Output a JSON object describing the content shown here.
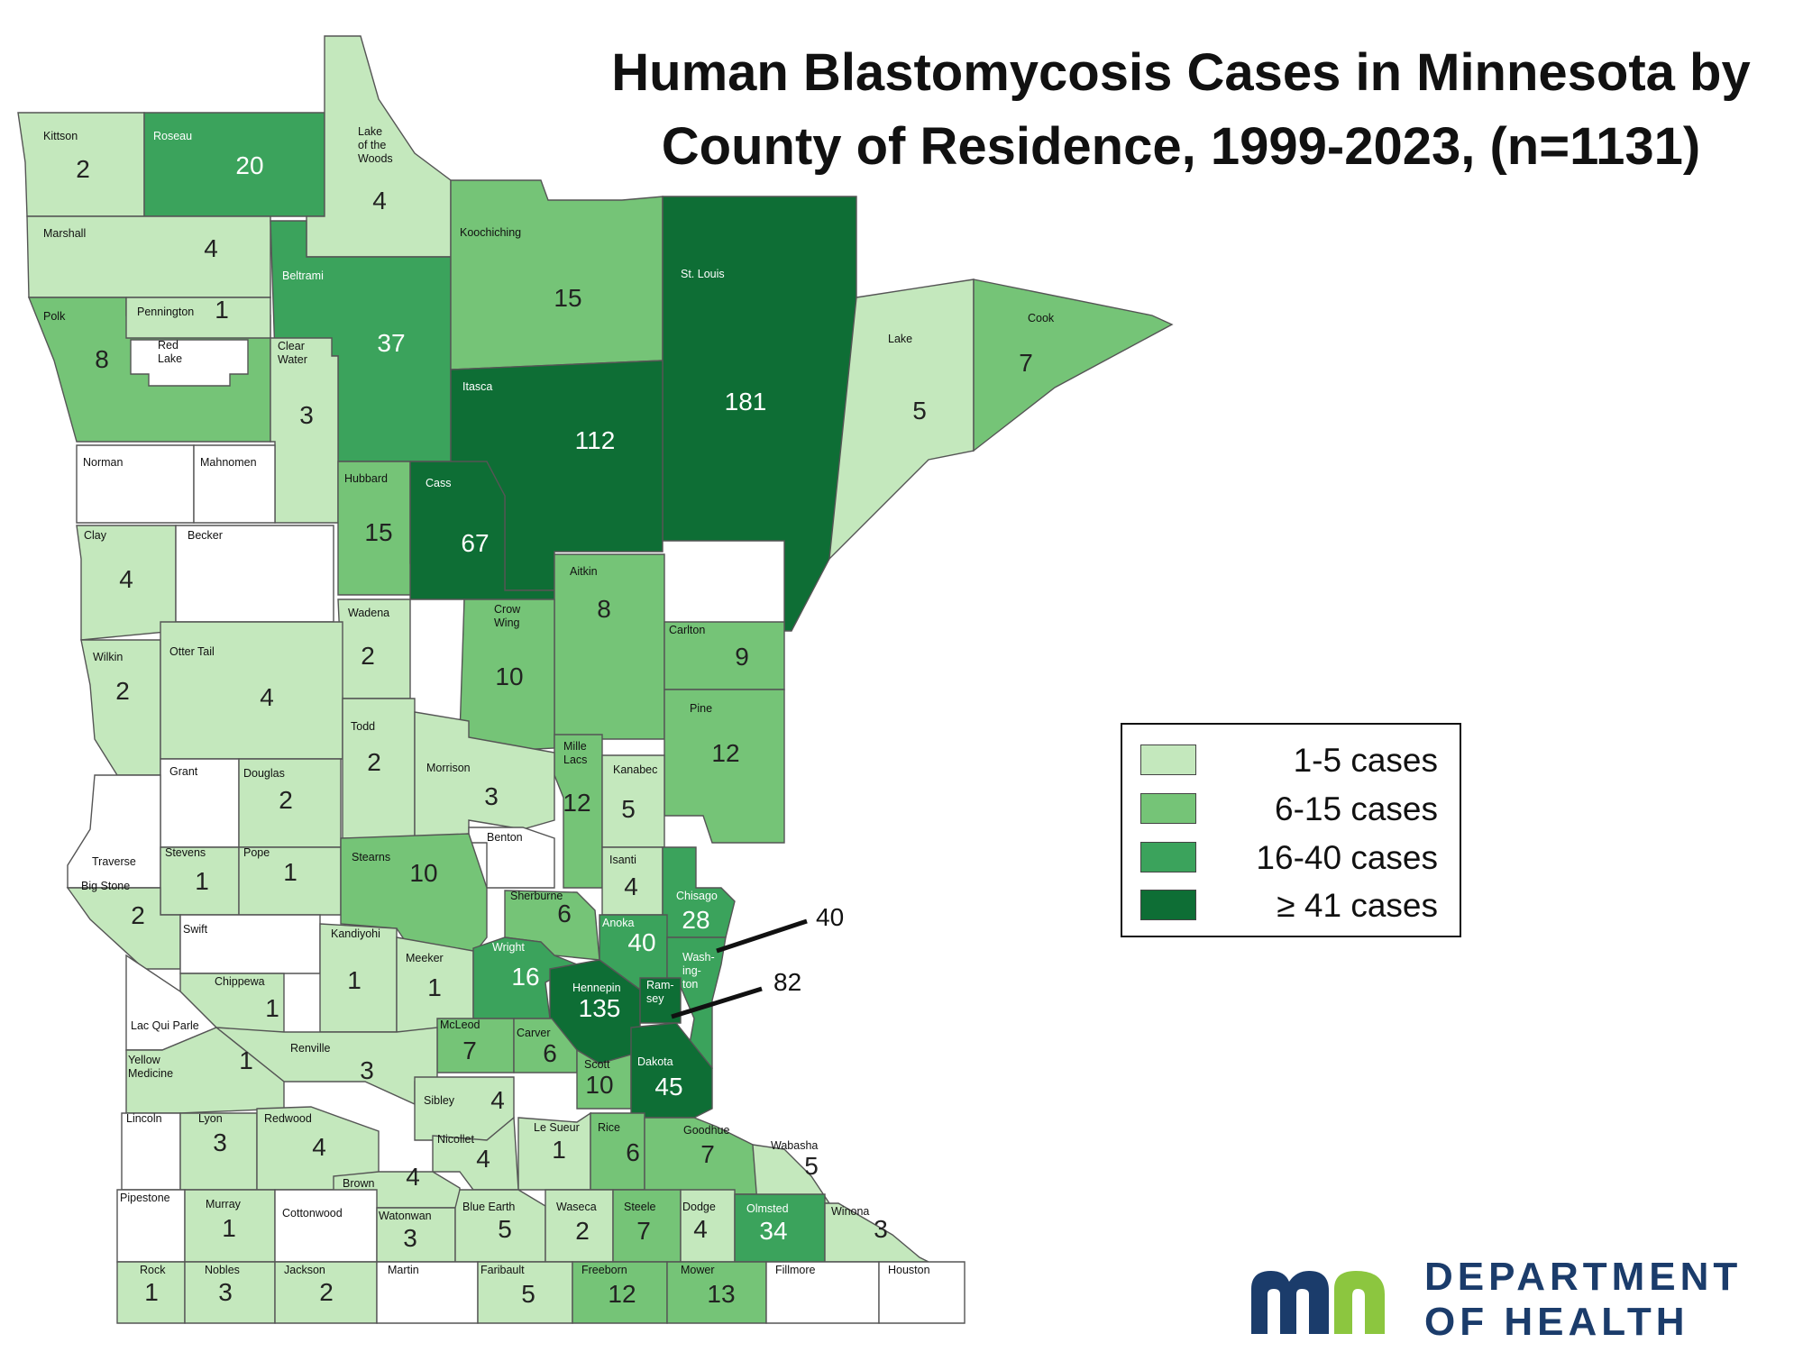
{
  "title": "Human Blastomycosis Cases in Minnesota by County of Residence, 1999-2023, (n=1131)",
  "colors": {
    "none": "#ffffff",
    "c1_5": "#c4e8bd",
    "c6_15": "#75c477",
    "c16_40": "#3ba35c",
    "c41plus": "#0e6e35",
    "border": "#555555",
    "logo_blue": "#1b3c6b",
    "logo_green": "#8cc63f"
  },
  "legend": {
    "items": [
      {
        "label": "1-5 cases",
        "color": "#c4e8bd"
      },
      {
        "label": "6-15 cases",
        "color": "#75c477"
      },
      {
        "label": "16-40 cases",
        "color": "#3ba35c"
      },
      {
        "label": "≥ 41 cases",
        "color": "#0e6e35"
      }
    ]
  },
  "callouts": {
    "washington_value": "40",
    "ramsey_value": "82"
  },
  "logo": {
    "line1": "DEPARTMENT",
    "line2": "OF HEALTH"
  },
  "counties": [
    {
      "name": "Kittson",
      "value": "2",
      "bin": "c1_5"
    },
    {
      "name": "Roseau",
      "value": "20",
      "bin": "c16_40"
    },
    {
      "name": "Lake of the Woods",
      "value": "4",
      "bin": "c1_5"
    },
    {
      "name": "Marshall",
      "value": "4",
      "bin": "c1_5"
    },
    {
      "name": "Beltrami",
      "value": "37",
      "bin": "c16_40"
    },
    {
      "name": "Koochiching",
      "value": "15",
      "bin": "c6_15"
    },
    {
      "name": "St. Louis",
      "value": "181",
      "bin": "c41plus"
    },
    {
      "name": "Lake",
      "value": "5",
      "bin": "c1_5"
    },
    {
      "name": "Cook",
      "value": "7",
      "bin": "c6_15"
    },
    {
      "name": "Polk",
      "value": "8",
      "bin": "c6_15"
    },
    {
      "name": "Pennington",
      "value": "1",
      "bin": "c1_5"
    },
    {
      "name": "Red Lake",
      "value": "",
      "bin": "none"
    },
    {
      "name": "Clear Water",
      "value": "3",
      "bin": "c1_5"
    },
    {
      "name": "Itasca",
      "value": "112",
      "bin": "c41plus"
    },
    {
      "name": "Norman",
      "value": "",
      "bin": "none"
    },
    {
      "name": "Mahnomen",
      "value": "",
      "bin": "none"
    },
    {
      "name": "Hubbard",
      "value": "15",
      "bin": "c6_15"
    },
    {
      "name": "Cass",
      "value": "67",
      "bin": "c41plus"
    },
    {
      "name": "Clay",
      "value": "4",
      "bin": "c1_5"
    },
    {
      "name": "Becker",
      "value": "",
      "bin": "none"
    },
    {
      "name": "Aitkin",
      "value": "8",
      "bin": "c6_15"
    },
    {
      "name": "Wadena",
      "value": "2",
      "bin": "c1_5"
    },
    {
      "name": "Crow Wing",
      "value": "10",
      "bin": "c6_15"
    },
    {
      "name": "Carlton",
      "value": "9",
      "bin": "c6_15"
    },
    {
      "name": "Wilkin",
      "value": "2",
      "bin": "c1_5"
    },
    {
      "name": "Otter Tail",
      "value": "4",
      "bin": "c1_5"
    },
    {
      "name": "Todd",
      "value": "2",
      "bin": "c1_5"
    },
    {
      "name": "Pine",
      "value": "12",
      "bin": "c6_15"
    },
    {
      "name": "Mille Lacs",
      "value": "12",
      "bin": "c6_15"
    },
    {
      "name": "Grant",
      "value": "",
      "bin": "none"
    },
    {
      "name": "Douglas",
      "value": "2",
      "bin": "c1_5"
    },
    {
      "name": "Morrison",
      "value": "3",
      "bin": "c1_5"
    },
    {
      "name": "Kanabec",
      "value": "5",
      "bin": "c1_5"
    },
    {
      "name": "Benton",
      "value": "",
      "bin": "none"
    },
    {
      "name": "Traverse",
      "value": "",
      "bin": "none"
    },
    {
      "name": "Stevens",
      "value": "1",
      "bin": "c1_5"
    },
    {
      "name": "Pope",
      "value": "1",
      "bin": "c1_5"
    },
    {
      "name": "Stearns",
      "value": "10",
      "bin": "c6_15"
    },
    {
      "name": "Isanti",
      "value": "4",
      "bin": "c1_5"
    },
    {
      "name": "Big Stone",
      "value": "2",
      "bin": "c1_5"
    },
    {
      "name": "Sherburne",
      "value": "6",
      "bin": "c6_15"
    },
    {
      "name": "Chisago",
      "value": "28",
      "bin": "c16_40"
    },
    {
      "name": "Swift",
      "value": "",
      "bin": "none"
    },
    {
      "name": "Anoka",
      "value": "40",
      "bin": "c16_40"
    },
    {
      "name": "Kandiyohi",
      "value": "1",
      "bin": "c1_5"
    },
    {
      "name": "Meeker",
      "value": "1",
      "bin": "c1_5"
    },
    {
      "name": "Wright",
      "value": "16",
      "bin": "c16_40"
    },
    {
      "name": "Washington",
      "value": "",
      "bin": "c16_40"
    },
    {
      "name": "Chippewa",
      "value": "1",
      "bin": "c1_5"
    },
    {
      "name": "Hennepin",
      "value": "135",
      "bin": "c41plus"
    },
    {
      "name": "Ramsey",
      "value": "",
      "bin": "c41plus"
    },
    {
      "name": "Lac Qui Parle",
      "value": "",
      "bin": "none"
    },
    {
      "name": "McLeod",
      "value": "7",
      "bin": "c6_15"
    },
    {
      "name": "Renville",
      "value": "3",
      "bin": "c1_5"
    },
    {
      "name": "Carver",
      "value": "6",
      "bin": "c6_15"
    },
    {
      "name": "Yellow Medicine",
      "value": "1",
      "bin": "c1_5"
    },
    {
      "name": "Scott",
      "value": "10",
      "bin": "c6_15"
    },
    {
      "name": "Dakota",
      "value": "45",
      "bin": "c41plus"
    },
    {
      "name": "Sibley",
      "value": "4",
      "bin": "c1_5"
    },
    {
      "name": "Lincoln",
      "value": "",
      "bin": "none"
    },
    {
      "name": "Lyon",
      "value": "3",
      "bin": "c1_5"
    },
    {
      "name": "Redwood",
      "value": "4",
      "bin": "c1_5"
    },
    {
      "name": "Le Sueur",
      "value": "1",
      "bin": "c1_5"
    },
    {
      "name": "Rice",
      "value": "6",
      "bin": "c6_15"
    },
    {
      "name": "Goodhue",
      "value": "7",
      "bin": "c6_15"
    },
    {
      "name": "Nicollet",
      "value": "4",
      "bin": "c1_5"
    },
    {
      "name": "Wabasha",
      "value": "5",
      "bin": "c1_5"
    },
    {
      "name": "Brown",
      "value": "4",
      "bin": "c1_5"
    },
    {
      "name": "Pipestone",
      "value": "",
      "bin": "none"
    },
    {
      "name": "Murray",
      "value": "1",
      "bin": "c1_5"
    },
    {
      "name": "Cottonwood",
      "value": "",
      "bin": "none"
    },
    {
      "name": "Watonwan",
      "value": "3",
      "bin": "c1_5"
    },
    {
      "name": "Blue Earth",
      "value": "5",
      "bin": "c1_5"
    },
    {
      "name": "Waseca",
      "value": "2",
      "bin": "c1_5"
    },
    {
      "name": "Steele",
      "value": "7",
      "bin": "c6_15"
    },
    {
      "name": "Dodge",
      "value": "4",
      "bin": "c1_5"
    },
    {
      "name": "Olmsted",
      "value": "34",
      "bin": "c16_40"
    },
    {
      "name": "Winona",
      "value": "3",
      "bin": "c1_5"
    },
    {
      "name": "Rock",
      "value": "1",
      "bin": "c1_5"
    },
    {
      "name": "Nobles",
      "value": "3",
      "bin": "c1_5"
    },
    {
      "name": "Jackson",
      "value": "2",
      "bin": "c1_5"
    },
    {
      "name": "Martin",
      "value": "",
      "bin": "none"
    },
    {
      "name": "Faribault",
      "value": "5",
      "bin": "c1_5"
    },
    {
      "name": "Freeborn",
      "value": "12",
      "bin": "c6_15"
    },
    {
      "name": "Mower",
      "value": "13",
      "bin": "c6_15"
    },
    {
      "name": "Fillmore",
      "value": "",
      "bin": "none"
    },
    {
      "name": "Houston",
      "value": "",
      "bin": "none"
    }
  ]
}
